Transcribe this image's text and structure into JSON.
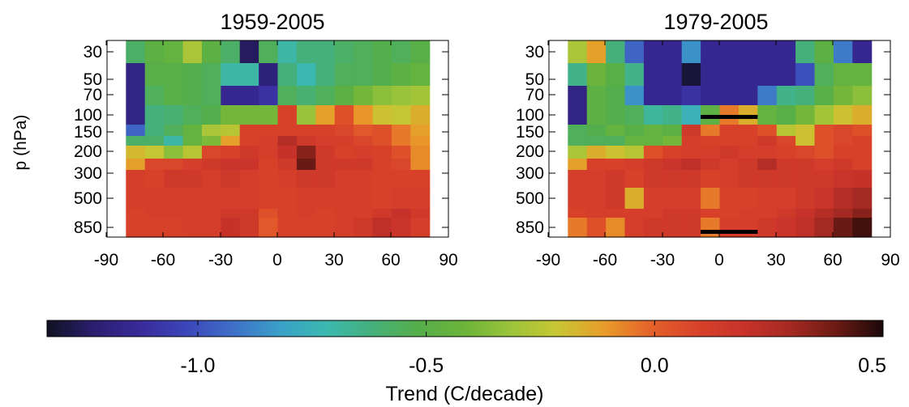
{
  "chart_data": {
    "type": "heatmap",
    "colorbar": {
      "label": "Trend (C/decade)",
      "range": [
        -1.33,
        0.5
      ],
      "ticks": [
        "-1.0",
        "-0.5",
        "0.0",
        "0.5"
      ],
      "tick_values": [
        -1.0,
        -0.5,
        0.0,
        0.5
      ],
      "colormap": [
        "#111122",
        "#2a1e6e",
        "#3a2a9a",
        "#3b46b8",
        "#3f6fc8",
        "#3aa0c8",
        "#3bb8b0",
        "#45b07a",
        "#55ae4a",
        "#6cb43a",
        "#9cc43a",
        "#c8c632",
        "#e89c2a",
        "#e4622a",
        "#d8422a",
        "#c8322a",
        "#a52a22",
        "#6b1a14",
        "#1a0808"
      ]
    },
    "panels": [
      {
        "title": "1959-2005",
        "ylabel": "p (hPa)",
        "xticks": [
          "-90",
          "-60",
          "-30",
          "0",
          "30",
          "60",
          "90"
        ],
        "xtick_values": [
          -90,
          -60,
          -30,
          0,
          30,
          60,
          90
        ],
        "yticks": [
          "30",
          "50",
          "70",
          "100",
          "150",
          "200",
          "300",
          "500",
          "850"
        ],
        "ytick_values": [
          30,
          50,
          70,
          100,
          150,
          200,
          300,
          500,
          850
        ],
        "x": [
          -75,
          -65,
          -55,
          -45,
          -35,
          -25,
          -15,
          -5,
          5,
          15,
          25,
          35,
          45,
          55,
          65,
          75
        ],
        "y": [
          30,
          50,
          70,
          100,
          150,
          200,
          250,
          300,
          400,
          500,
          700,
          850
        ],
        "xlim": [
          -90,
          90
        ],
        "values": [
          [
            -0.58,
            -0.48,
            -0.45,
            -0.28,
            -0.48,
            -0.58,
            -1.25,
            -0.55,
            -0.7,
            -0.62,
            -0.62,
            -0.58,
            -0.55,
            -0.52,
            -0.55,
            -0.5
          ],
          [
            -1.18,
            -0.5,
            -0.5,
            -0.52,
            -0.55,
            -0.7,
            -0.7,
            -1.2,
            -0.62,
            -0.72,
            -0.62,
            -0.55,
            -0.55,
            -0.52,
            -0.48,
            -0.45
          ],
          [
            -1.18,
            -0.55,
            -0.5,
            -0.52,
            -0.55,
            -1.15,
            -1.15,
            -1.1,
            -0.55,
            -0.6,
            -0.55,
            -0.48,
            -0.4,
            -0.35,
            -0.32,
            -0.3
          ],
          [
            -1.18,
            -0.62,
            -0.6,
            -0.55,
            -0.52,
            -0.4,
            -0.4,
            -0.4,
            0.1,
            -0.32,
            -0.12,
            0.05,
            -0.1,
            -0.2,
            -0.22,
            -0.15
          ],
          [
            -0.95,
            -0.62,
            -0.55,
            -0.45,
            -0.28,
            -0.25,
            0.1,
            0.1,
            0.1,
            0.1,
            0.1,
            0.08,
            0.02,
            0.05,
            -0.05,
            -0.12
          ],
          [
            -0.58,
            -0.58,
            -0.7,
            -0.45,
            -0.38,
            -0.12,
            0.1,
            0.12,
            0.25,
            0.15,
            0.12,
            0.12,
            0.08,
            0.05,
            -0.05,
            -0.1
          ],
          [
            -0.18,
            -0.22,
            -0.35,
            -0.25,
            0.08,
            0.1,
            0.15,
            0.12,
            0.2,
            0.35,
            0.15,
            0.1,
            0.12,
            0.1,
            0.05,
            -0.08
          ],
          [
            -0.12,
            0.08,
            0.08,
            0.12,
            0.15,
            0.18,
            0.18,
            0.1,
            0.15,
            0.4,
            0.15,
            0.15,
            0.15,
            0.1,
            0.08,
            -0.08
          ],
          [
            0.12,
            0.1,
            0.15,
            0.15,
            0.12,
            0.15,
            0.12,
            0.1,
            0.12,
            0.15,
            0.15,
            0.12,
            0.12,
            0.1,
            0.1,
            0.1
          ],
          [
            0.12,
            0.12,
            0.12,
            0.12,
            0.12,
            0.12,
            0.12,
            0.1,
            0.1,
            0.12,
            0.12,
            0.12,
            0.12,
            0.1,
            0.12,
            0.12
          ],
          [
            0.1,
            0.12,
            0.12,
            0.12,
            0.12,
            0.15,
            0.15,
            0.05,
            0.1,
            0.12,
            0.1,
            0.12,
            0.12,
            0.15,
            0.2,
            0.15
          ],
          [
            0.1,
            0.1,
            0.1,
            0.12,
            0.12,
            0.2,
            0.15,
            0.02,
            0.1,
            0.1,
            0.1,
            0.12,
            0.15,
            0.22,
            0.18,
            0.12
          ]
        ]
      },
      {
        "title": "1979-2005",
        "ylabel": "",
        "xticks": [
          "-90",
          "-60",
          "-30",
          "0",
          "30",
          "60",
          "90"
        ],
        "xtick_values": [
          -90,
          -60,
          -30,
          0,
          30,
          60,
          90
        ],
        "yticks": [
          "30",
          "50",
          "70",
          "100",
          "150",
          "200",
          "300",
          "500",
          "850"
        ],
        "ytick_values": [
          30,
          50,
          70,
          100,
          150,
          200,
          300,
          500,
          850
        ],
        "x": [
          -75,
          -65,
          -55,
          -45,
          -35,
          -25,
          -15,
          -5,
          5,
          15,
          25,
          35,
          45,
          55,
          65,
          75
        ],
        "y": [
          30,
          50,
          70,
          100,
          150,
          200,
          250,
          300,
          400,
          500,
          700,
          850
        ],
        "xlim": [
          -90,
          90
        ],
        "values": [
          [
            -0.28,
            -0.12,
            -0.62,
            -0.95,
            -1.15,
            -1.15,
            -0.85,
            -1.15,
            -1.15,
            -1.15,
            -1.15,
            -1.15,
            -0.62,
            -0.48,
            -0.9,
            -1.15
          ],
          [
            -0.65,
            -0.42,
            -0.5,
            -0.65,
            -1.15,
            -1.15,
            -1.3,
            -1.15,
            -1.15,
            -1.15,
            -1.15,
            -1.15,
            -1.0,
            -0.55,
            -0.45,
            -0.45
          ],
          [
            -1.18,
            -0.48,
            -0.52,
            -0.85,
            -1.15,
            -1.15,
            -1.1,
            -1.15,
            -1.15,
            -1.15,
            -0.9,
            -0.65,
            -0.62,
            -0.5,
            -0.4,
            -0.35
          ],
          [
            -1.18,
            -0.48,
            -0.52,
            -0.55,
            -0.68,
            -0.65,
            -0.75,
            -0.48,
            -0.05,
            -0.15,
            -0.45,
            -0.5,
            -0.4,
            -0.3,
            -0.2,
            -0.15
          ],
          [
            -0.55,
            -0.52,
            -0.45,
            -0.5,
            -0.45,
            -0.48,
            0.15,
            -0.05,
            0.1,
            0.1,
            0.05,
            -0.25,
            -0.2,
            0.05,
            0.08,
            0.05
          ],
          [
            -0.55,
            -0.55,
            -0.55,
            -0.45,
            -0.45,
            -0.4,
            0.12,
            0.1,
            0.1,
            0.1,
            0.15,
            0.08,
            -0.2,
            0.05,
            0.08,
            0.1
          ],
          [
            -0.28,
            -0.15,
            -0.2,
            -0.25,
            0.05,
            0.1,
            0.12,
            0.12,
            0.15,
            0.12,
            0.12,
            0.1,
            0.08,
            0.05,
            0.1,
            0.1
          ],
          [
            -0.12,
            0.1,
            0.1,
            0.12,
            0.15,
            0.18,
            0.22,
            0.15,
            0.12,
            0.15,
            0.25,
            0.15,
            0.15,
            0.12,
            0.15,
            0.1
          ],
          [
            0.12,
            0.12,
            0.15,
            0.1,
            0.15,
            0.15,
            0.15,
            0.1,
            0.12,
            0.15,
            0.15,
            0.15,
            0.15,
            0.15,
            0.18,
            0.2
          ],
          [
            0.12,
            0.12,
            0.15,
            -0.15,
            0.12,
            0.12,
            0.12,
            -0.05,
            0.1,
            0.1,
            0.12,
            0.12,
            0.15,
            0.18,
            0.25,
            0.3
          ],
          [
            0.1,
            0.12,
            0.12,
            0.12,
            0.12,
            0.15,
            0.15,
            0.1,
            0.1,
            0.12,
            0.12,
            0.15,
            0.2,
            0.25,
            0.3,
            0.35
          ],
          [
            -0.05,
            0.05,
            -0.08,
            0.12,
            0.15,
            0.15,
            0.15,
            -0.05,
            0.12,
            0.12,
            0.15,
            0.18,
            0.22,
            0.3,
            0.4,
            0.45
          ]
        ],
        "black_bars": [
          {
            "lat_from": -10,
            "lat_to": 20,
            "p": 100
          },
          {
            "lat_from": -10,
            "lat_to": 20,
            "p": 850
          }
        ]
      }
    ]
  }
}
